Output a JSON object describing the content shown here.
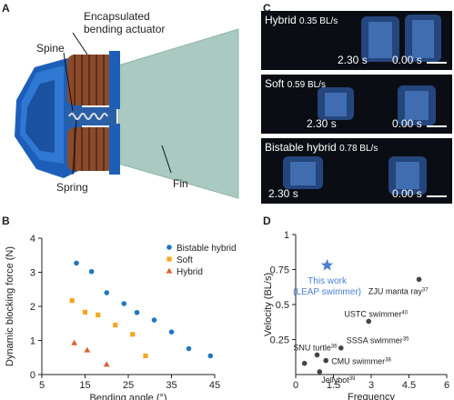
{
  "panels": {
    "A": "A",
    "B": "B",
    "C": "C",
    "D": "D"
  },
  "panel_a": {
    "labels": {
      "actuator_line1": "Encapsulated",
      "actuator_line2": "bending actuator",
      "spine": "Spine",
      "spring": "Spring",
      "fin": "Fin"
    },
    "colors": {
      "body": "#1f5fb4",
      "coil": "#8a4a2c",
      "fin": "#a8c8c0"
    }
  },
  "panel_c": {
    "frames": [
      {
        "mode": "Hybrid",
        "speed": "0.35 BL/s",
        "t_left": "2.30 s",
        "t_right": "0.00 s"
      },
      {
        "mode": "Soft",
        "speed": "0.59 BL/s",
        "t_left": "2.30 s",
        "t_right": "0.00 s"
      },
      {
        "mode": "Bistable hybrid",
        "speed": "0.78 BL/s",
        "t_left": "2.30 s",
        "t_right": "0.00 s"
      }
    ]
  },
  "chart_data": [
    {
      "panel": "B",
      "type": "scatter",
      "xlabel": "Bending angle (°)",
      "ylabel": "Dynamic blocking force (N)",
      "xlim": [
        5,
        45
      ],
      "ylim": [
        0,
        4
      ],
      "xticks": [
        5,
        15,
        25,
        35,
        45
      ],
      "yticks": [
        0,
        1,
        2,
        3,
        4
      ],
      "legend_position": "top-right",
      "series": [
        {
          "name": "Bistable hybrid",
          "color": "#1f77c4",
          "marker": "circle",
          "x": [
            13,
            16.5,
            20,
            24,
            27,
            31,
            35,
            39,
            44
          ],
          "y": [
            3.27,
            3.02,
            2.4,
            2.08,
            1.82,
            1.6,
            1.25,
            0.76,
            0.55
          ]
        },
        {
          "name": "Soft",
          "color": "#f5a623",
          "marker": "square",
          "x": [
            12,
            15,
            18,
            22,
            26,
            29
          ],
          "y": [
            2.17,
            1.83,
            1.75,
            1.45,
            1.18,
            0.55
          ]
        },
        {
          "name": "Hybrid",
          "color": "#d9622b",
          "marker": "triangle",
          "x": [
            12.5,
            15.5,
            20
          ],
          "y": [
            0.93,
            0.72,
            0.3
          ]
        }
      ]
    },
    {
      "panel": "D",
      "type": "scatter",
      "xlabel": "Frequency",
      "ylabel": "Velocity (BL/s)",
      "xlim": [
        0,
        6
      ],
      "ylim": [
        0,
        1
      ],
      "xticks": [
        0,
        1.5,
        3,
        4.5,
        6
      ],
      "xtick_labels": [
        "0",
        "1.5",
        "3",
        "4.5",
        "6"
      ],
      "yticks": [
        0.25,
        0.5,
        0.75,
        1
      ],
      "ytick_labels": [
        "0.25",
        "0.5",
        "0.75",
        "1"
      ],
      "highlight": {
        "label_line1": "This work",
        "label_line2": "(LEAP swimmer)",
        "x": 1.25,
        "y": 0.78,
        "color": "#4a7fd0",
        "marker": "star"
      },
      "points": [
        {
          "label": "ZJU manta ray",
          "ref": "37",
          "x": 4.9,
          "y": 0.68
        },
        {
          "label": "USTC swimmer",
          "ref": "40",
          "x": 2.9,
          "y": 0.38
        },
        {
          "label": "SSSA swimmer",
          "ref": "35",
          "x": 1.8,
          "y": 0.19
        },
        {
          "label": "SNU turtle",
          "ref": "36",
          "x": 0.85,
          "y": 0.14
        },
        {
          "label": "CMU swimmer",
          "ref": "38",
          "x": 1.2,
          "y": 0.1
        },
        {
          "label": "Jellybot",
          "ref": "39",
          "x": 0.95,
          "y": 0.02
        },
        {
          "label": "",
          "ref": "",
          "x": 0.35,
          "y": 0.08
        }
      ],
      "point_color": "#444444"
    }
  ]
}
